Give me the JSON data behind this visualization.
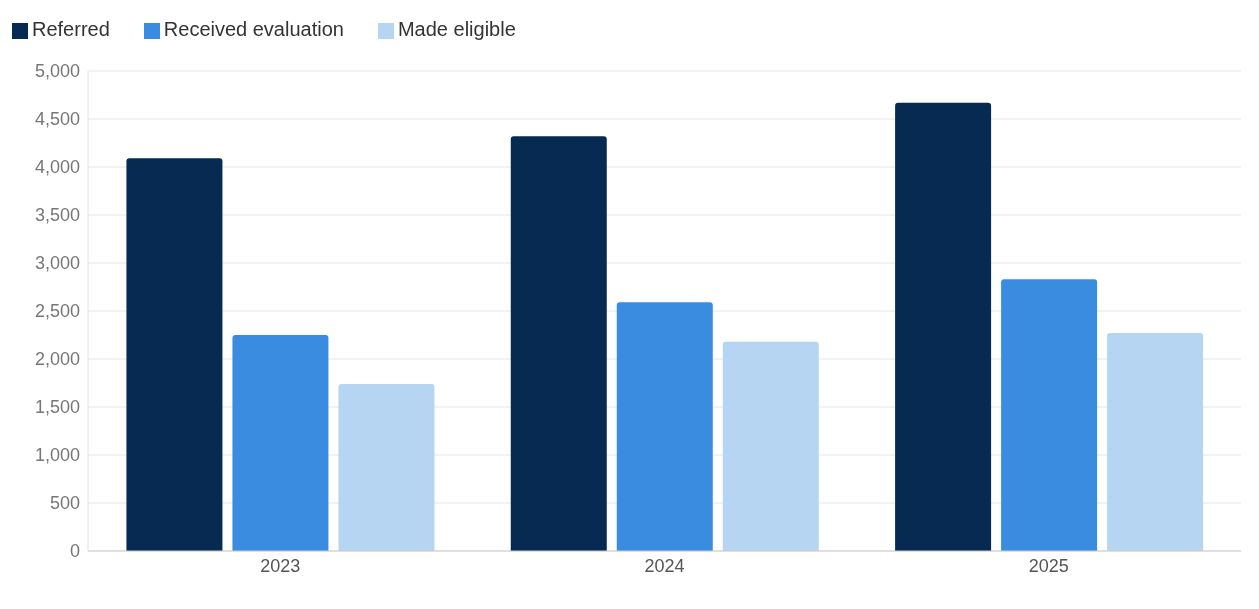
{
  "chart_data": {
    "type": "bar",
    "categories": [
      "2023",
      "2024",
      "2025"
    ],
    "series": [
      {
        "name": "Referred",
        "color": "#062a52",
        "values": [
          4090,
          4320,
          4670
        ]
      },
      {
        "name": "Received evaluation",
        "color": "#3a8ce0",
        "values": [
          2250,
          2590,
          2830
        ]
      },
      {
        "name": "Made eligible",
        "color": "#b5d5f3",
        "values": [
          1740,
          2180,
          2270
        ]
      }
    ],
    "ylim": [
      0,
      5000
    ],
    "yticks": [
      0,
      {
        "value": 500,
        "label": "500"
      },
      {
        "value": 1000,
        "label": "1,000"
      },
      {
        "value": 1500,
        "label": "1,500"
      },
      {
        "value": 2000,
        "label": "2,000"
      },
      {
        "value": 2500,
        "label": "2,500"
      },
      {
        "value": 3000,
        "label": "3,000"
      },
      {
        "value": 3500,
        "label": "3,500"
      },
      {
        "value": 4000,
        "label": "4,000"
      },
      {
        "value": 4500,
        "label": "4,500"
      },
      {
        "value": 5000,
        "label": "5,000"
      }
    ],
    "grid": "y",
    "legend": "top left"
  }
}
